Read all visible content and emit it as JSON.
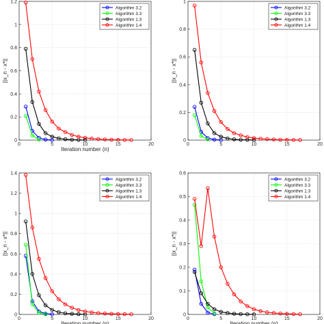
{
  "chart_data": [
    {
      "type": "line",
      "xlabel": "Iteration number (n)",
      "ylabel": "||x_n - x*||",
      "xlim": [
        0,
        20
      ],
      "ylim": [
        0,
        1.2
      ],
      "xticks": [
        0,
        5,
        10,
        15,
        20
      ],
      "yticks": [
        0,
        0.2,
        0.4,
        0.6,
        0.8,
        1,
        1.2
      ],
      "grid": true,
      "legend": "top-right",
      "series": [
        {
          "name": "Algorithm 3.2",
          "color": "#0000ff",
          "x": [
            1,
            2,
            3,
            4,
            5
          ],
          "y": [
            0.29,
            0.08,
            0.02,
            0.005,
            0.001
          ]
        },
        {
          "name": "Algorithm 3.3",
          "color": "#00ff00",
          "x": [
            1,
            2,
            3
          ],
          "y": [
            0.21,
            0.04,
            0.005
          ]
        },
        {
          "name": "Algorithm 1.3",
          "color": "#000000",
          "x": [
            1,
            2,
            3,
            4,
            5,
            6,
            7,
            8,
            9,
            10
          ],
          "y": [
            0.79,
            0.33,
            0.14,
            0.06,
            0.03,
            0.015,
            0.008,
            0.004,
            0.002,
            0.001
          ]
        },
        {
          "name": "Algorithm 1.4",
          "color": "#ff0000",
          "x": [
            1,
            2,
            3,
            4,
            5,
            6,
            7,
            8,
            9,
            10,
            11,
            12,
            13,
            14,
            15,
            16,
            17
          ],
          "y": [
            1.19,
            0.7,
            0.42,
            0.26,
            0.16,
            0.1,
            0.07,
            0.045,
            0.03,
            0.02,
            0.013,
            0.009,
            0.006,
            0.004,
            0.003,
            0.002,
            0.001
          ]
        }
      ]
    },
    {
      "type": "line",
      "xlabel": "",
      "ylabel": "||x_n - x*||",
      "xlim": [
        0,
        20
      ],
      "ylim": [
        0,
        1
      ],
      "xticks": [
        0,
        5,
        10,
        15,
        20
      ],
      "yticks": [
        0,
        0.2,
        0.4,
        0.6,
        0.8,
        1
      ],
      "grid": true,
      "legend": "top-right",
      "series": [
        {
          "name": "Algorithm 3.2",
          "color": "#0000ff",
          "x": [
            1,
            2,
            3,
            4,
            5
          ],
          "y": [
            0.24,
            0.06,
            0.015,
            0.004,
            0.001
          ]
        },
        {
          "name": "Algorithm 3.3",
          "color": "#00ff00",
          "x": [
            1,
            2,
            3
          ],
          "y": [
            0.18,
            0.03,
            0.005
          ]
        },
        {
          "name": "Algorithm 1.3",
          "color": "#000000",
          "x": [
            1,
            2,
            3,
            4,
            5,
            6,
            7,
            8,
            9,
            10
          ],
          "y": [
            0.65,
            0.27,
            0.12,
            0.05,
            0.025,
            0.012,
            0.006,
            0.003,
            0.002,
            0.001
          ]
        },
        {
          "name": "Algorithm 1.4",
          "color": "#ff0000",
          "x": [
            1,
            2,
            3,
            4,
            5,
            6,
            7,
            8,
            9,
            10,
            11,
            12,
            13,
            14,
            15,
            16,
            17
          ],
          "y": [
            0.97,
            0.56,
            0.34,
            0.21,
            0.13,
            0.08,
            0.05,
            0.035,
            0.022,
            0.015,
            0.01,
            0.007,
            0.005,
            0.003,
            0.002,
            0.0015,
            0.001
          ]
        }
      ]
    },
    {
      "type": "line",
      "xlabel": "Iteration number (n)",
      "ylabel": "||x_n - x*||",
      "xlim": [
        0,
        20
      ],
      "ylim": [
        0,
        1.4
      ],
      "xticks": [
        0,
        5,
        10,
        15,
        20
      ],
      "yticks": [
        0,
        0.2,
        0.4,
        0.6,
        0.8,
        1,
        1.2,
        1.4
      ],
      "grid": true,
      "legend": "top-right",
      "series": [
        {
          "name": "Algorithm 3.2",
          "color": "#0000ff",
          "x": [
            1,
            2,
            3,
            4,
            5
          ],
          "y": [
            0.58,
            0.13,
            0.03,
            0.008,
            0.002
          ]
        },
        {
          "name": "Algorithm 3.3",
          "color": "#00ff00",
          "x": [
            1,
            2,
            3,
            4
          ],
          "y": [
            0.69,
            0.1,
            0.015,
            0.002
          ]
        },
        {
          "name": "Algorithm 1.3",
          "color": "#000000",
          "x": [
            1,
            2,
            3,
            4,
            5,
            6,
            7,
            8,
            9,
            10
          ],
          "y": [
            0.92,
            0.4,
            0.19,
            0.09,
            0.045,
            0.022,
            0.011,
            0.006,
            0.003,
            0.001
          ]
        },
        {
          "name": "Algorithm 1.4",
          "color": "#ff0000",
          "x": [
            1,
            2,
            3,
            4,
            5,
            6,
            7,
            8,
            9,
            10,
            11,
            12,
            13,
            14,
            15,
            16,
            17
          ],
          "y": [
            1.38,
            0.86,
            0.55,
            0.36,
            0.23,
            0.15,
            0.1,
            0.066,
            0.044,
            0.03,
            0.02,
            0.013,
            0.009,
            0.006,
            0.004,
            0.003,
            0.002
          ]
        }
      ]
    },
    {
      "type": "line",
      "xlabel": "Iteration number (n)",
      "ylabel": "||x_n - x*||",
      "xlim": [
        0,
        20
      ],
      "ylim": [
        0,
        0.6
      ],
      "xticks": [
        0,
        5,
        10,
        15,
        20
      ],
      "yticks": [
        0,
        0.1,
        0.2,
        0.3,
        0.4,
        0.5,
        0.6
      ],
      "grid": true,
      "legend": "top-right",
      "series": [
        {
          "name": "Algorithm 3.2",
          "color": "#0000ff",
          "x": [
            1,
            2,
            3,
            4
          ],
          "y": [
            0.19,
            0.045,
            0.008,
            0.001
          ]
        },
        {
          "name": "Algorithm 3.3",
          "color": "#00ff00",
          "x": [
            1,
            2,
            3,
            4
          ],
          "y": [
            0.465,
            0.14,
            0.03,
            0.005
          ]
        },
        {
          "name": "Algorithm 1.3",
          "color": "#000000",
          "x": [
            1,
            2,
            3,
            4,
            5,
            6,
            7,
            8,
            9,
            10
          ],
          "y": [
            0.18,
            0.09,
            0.045,
            0.022,
            0.011,
            0.006,
            0.003,
            0.0015,
            0.0008,
            0.0004
          ]
        },
        {
          "name": "Algorithm 1.4",
          "color": "#ff0000",
          "x": [
            1,
            2,
            3,
            4,
            5,
            6,
            7,
            8,
            9,
            10,
            11,
            12,
            13,
            14,
            15,
            16,
            17
          ],
          "y": [
            0.49,
            0.29,
            0.535,
            0.33,
            0.2,
            0.13,
            0.085,
            0.055,
            0.035,
            0.022,
            0.014,
            0.009,
            0.006,
            0.004,
            0.0025,
            0.0015,
            0.001
          ]
        }
      ]
    }
  ]
}
